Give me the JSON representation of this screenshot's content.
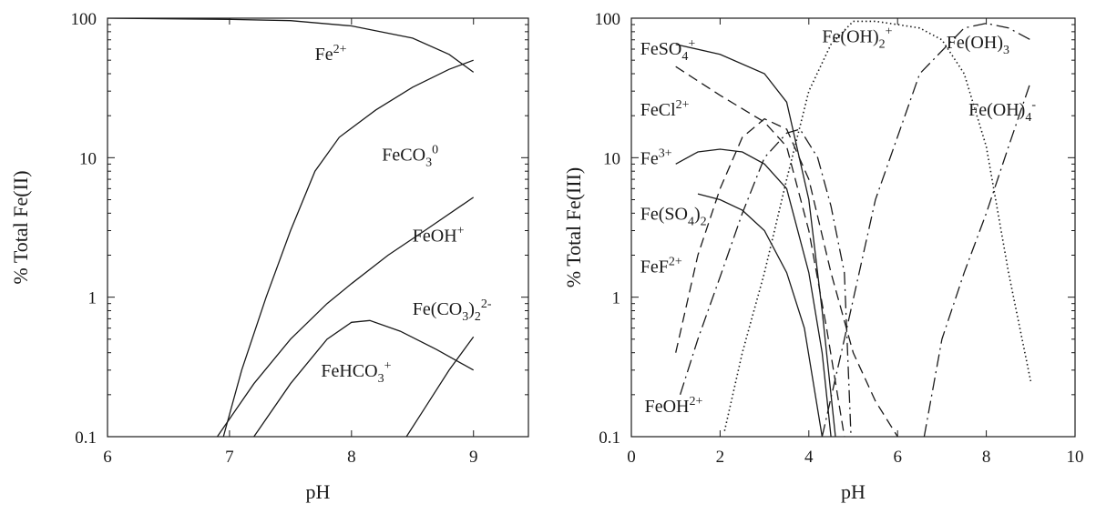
{
  "chart_data": [
    {
      "type": "line",
      "xlabel": "pH",
      "ylabel": "% Total Fe(II)",
      "xlim": [
        6,
        9.45
      ],
      "ylim": [
        0.1,
        100
      ],
      "yscale": "log",
      "grid": false,
      "x_ticks": [
        "6",
        "7",
        "8",
        "9"
      ],
      "y_ticks": [
        "0.1",
        "1",
        "10",
        "100"
      ],
      "series": [
        {
          "name": "Fe2+",
          "style": "solid",
          "points": [
            [
              6,
              100
            ],
            [
              7,
              98
            ],
            [
              7.5,
              96
            ],
            [
              8,
              88
            ],
            [
              8.5,
              72
            ],
            [
              8.8,
              55
            ],
            [
              9,
              41
            ]
          ]
        },
        {
          "name": "FeCO3 0",
          "style": "solid",
          "points": [
            [
              6.95,
              0.1
            ],
            [
              7.1,
              0.3
            ],
            [
              7.3,
              1.0
            ],
            [
              7.5,
              3.0
            ],
            [
              7.7,
              8.0
            ],
            [
              7.9,
              14
            ],
            [
              8.2,
              22
            ],
            [
              8.5,
              32
            ],
            [
              8.8,
              43
            ],
            [
              9,
              50
            ]
          ]
        },
        {
          "name": "FeOH+",
          "style": "solid",
          "points": [
            [
              6.9,
              0.1
            ],
            [
              7.2,
              0.24
            ],
            [
              7.5,
              0.5
            ],
            [
              7.8,
              0.9
            ],
            [
              8,
              1.25
            ],
            [
              8.3,
              2.0
            ],
            [
              8.6,
              3.0
            ],
            [
              9,
              5.2
            ]
          ]
        },
        {
          "name": "FeHCO3+",
          "style": "solid",
          "points": [
            [
              7.2,
              0.1
            ],
            [
              7.5,
              0.24
            ],
            [
              7.8,
              0.5
            ],
            [
              8.0,
              0.66
            ],
            [
              8.15,
              0.68
            ],
            [
              8.4,
              0.57
            ],
            [
              8.7,
              0.42
            ],
            [
              9,
              0.3
            ]
          ]
        },
        {
          "name": "Fe(CO3)2 2-",
          "style": "solid",
          "points": [
            [
              8.45,
              0.1
            ],
            [
              8.6,
              0.16
            ],
            [
              8.8,
              0.3
            ],
            [
              9,
              0.52
            ]
          ]
        }
      ],
      "labels": [
        {
          "base": "Fe",
          "sup": "2+",
          "sub": "",
          "sup2": "",
          "at": [
            7.7,
            50
          ]
        },
        {
          "base": "FeCO",
          "sub": "3",
          "sup": "0",
          "sup2": "",
          "at": [
            8.25,
            9.5
          ]
        },
        {
          "base": "FeOH",
          "sub": "",
          "sup": "+",
          "sup2": "",
          "at": [
            8.5,
            2.5
          ]
        },
        {
          "base": "Fe(CO",
          "sub": "3",
          "mid": ")",
          "sub2": "2",
          "sup2": "2-",
          "at": [
            8.5,
            0.75
          ]
        },
        {
          "base": "FeHCO",
          "sub": "3",
          "sup": "+",
          "sup2": "",
          "at": [
            7.75,
            0.27
          ]
        }
      ]
    },
    {
      "type": "line",
      "xlabel": "pH",
      "ylabel": "% Total Fe(III)",
      "xlim": [
        0,
        10
      ],
      "ylim": [
        0.1,
        100
      ],
      "yscale": "log",
      "grid": false,
      "x_ticks": [
        "0",
        "2",
        "4",
        "6",
        "8",
        "10"
      ],
      "y_ticks": [
        "0.1",
        "1",
        "10",
        "100"
      ],
      "series": [
        {
          "name": "FeSO4+",
          "style": "solid",
          "points": [
            [
              1,
              65
            ],
            [
              2,
              55
            ],
            [
              3,
              40
            ],
            [
              3.5,
              25
            ],
            [
              4,
              5
            ],
            [
              4.3,
              0.8
            ],
            [
              4.6,
              0.1
            ]
          ]
        },
        {
          "name": "FeCl2+",
          "style": "dashed",
          "points": [
            [
              1,
              45
            ],
            [
              2,
              28
            ],
            [
              3,
              18
            ],
            [
              3.5,
              12
            ],
            [
              4,
              3
            ],
            [
              4.4,
              0.6
            ],
            [
              4.8,
              0.1
            ]
          ]
        },
        {
          "name": "Fe3+",
          "style": "solid",
          "points": [
            [
              1,
              9
            ],
            [
              1.5,
              11
            ],
            [
              2,
              11.5
            ],
            [
              2.5,
              11
            ],
            [
              3,
              9
            ],
            [
              3.5,
              6
            ],
            [
              4,
              1.5
            ],
            [
              4.3,
              0.4
            ],
            [
              4.5,
              0.1
            ]
          ]
        },
        {
          "name": "Fe(SO4)2",
          "style": "solid",
          "points": [
            [
              1.5,
              5.5
            ],
            [
              2,
              5
            ],
            [
              2.5,
              4.2
            ],
            [
              3,
              3
            ],
            [
              3.5,
              1.5
            ],
            [
              3.9,
              0.6
            ],
            [
              4.3,
              0.1
            ]
          ]
        },
        {
          "name": "FeF2+",
          "style": "dashed",
          "points": [
            [
              1,
              0.4
            ],
            [
              1.5,
              2.0
            ],
            [
              2,
              6
            ],
            [
              2.5,
              14
            ],
            [
              3,
              19
            ],
            [
              3.5,
              16
            ],
            [
              4,
              7
            ],
            [
              4.5,
              1.5
            ],
            [
              5,
              0.4
            ],
            [
              5.5,
              0.18
            ],
            [
              6,
              0.1
            ]
          ]
        },
        {
          "name": "FeOH2+",
          "style": "dashdot",
          "points": [
            [
              1.1,
              0.2
            ],
            [
              1.5,
              0.5
            ],
            [
              2,
              1.4
            ],
            [
              2.5,
              4
            ],
            [
              3,
              10
            ],
            [
              3.5,
              15
            ],
            [
              3.8,
              16
            ],
            [
              4.2,
              10
            ],
            [
              4.5,
              4.5
            ],
            [
              4.8,
              1.5
            ],
            [
              4.95,
              0.1
            ]
          ]
        },
        {
          "name": "Fe(OH)2+",
          "style": "dotted",
          "points": [
            [
              2.1,
              0.11
            ],
            [
              2.5,
              0.4
            ],
            [
              3,
              1.5
            ],
            [
              3.5,
              7
            ],
            [
              4,
              30
            ],
            [
              4.5,
              65
            ],
            [
              5,
              95
            ],
            [
              5.5,
              95
            ],
            [
              6,
              90
            ],
            [
              6.5,
              85
            ],
            [
              7,
              70
            ],
            [
              7.5,
              40
            ],
            [
              8,
              12
            ],
            [
              8.5,
              1.5
            ],
            [
              9,
              0.25
            ]
          ]
        },
        {
          "name": "Fe(OH)3",
          "style": "dashdot",
          "points": [
            [
              4.3,
              0.1
            ],
            [
              4.8,
              0.5
            ],
            [
              5.5,
              5
            ],
            [
              6.5,
              40
            ],
            [
              7.5,
              85
            ],
            [
              8,
              92
            ],
            [
              8.5,
              85
            ],
            [
              9,
              70
            ]
          ]
        },
        {
          "name": "Fe(OH)4-",
          "style": "dashdot",
          "points": [
            [
              6.6,
              0.1
            ],
            [
              7,
              0.5
            ],
            [
              7.5,
              1.5
            ],
            [
              8,
              4
            ],
            [
              8.5,
              12
            ],
            [
              9,
              35
            ]
          ]
        }
      ],
      "labels": [
        {
          "base": "FeSO",
          "sub": "4",
          "sup": "+",
          "sup2": "",
          "at": [
            0.2,
            55
          ]
        },
        {
          "base": "FeCl",
          "sub": "",
          "sup": "2+",
          "sup2": "",
          "at": [
            0.2,
            20
          ]
        },
        {
          "base": "Fe",
          "sub": "",
          "sup": "3+",
          "sup2": "",
          "at": [
            0.2,
            9
          ]
        },
        {
          "base": "Fe(SO",
          "sub": "4",
          "mid": ")",
          "sub2": "2",
          "sup2": "",
          "at": [
            0.2,
            3.6
          ]
        },
        {
          "base": "FeF",
          "sub": "",
          "sup": "2+",
          "sup2": "",
          "at": [
            0.2,
            1.5
          ]
        },
        {
          "base": "FeOH",
          "sub": "",
          "sup": "2+",
          "sup2": "",
          "at": [
            0.3,
            0.15
          ]
        },
        {
          "base": "Fe(OH)",
          "sub": "2",
          "sup": "+",
          "sup2": "",
          "at": [
            4.3,
            67
          ]
        },
        {
          "base": "Fe(OH)",
          "sub": "3",
          "sup": "",
          "sup2": "",
          "at": [
            7.1,
            61
          ]
        },
        {
          "base": "Fe(OH)",
          "sub": "4",
          "sup": "-",
          "sup2": "",
          "at": [
            7.6,
            20
          ]
        }
      ]
    }
  ]
}
